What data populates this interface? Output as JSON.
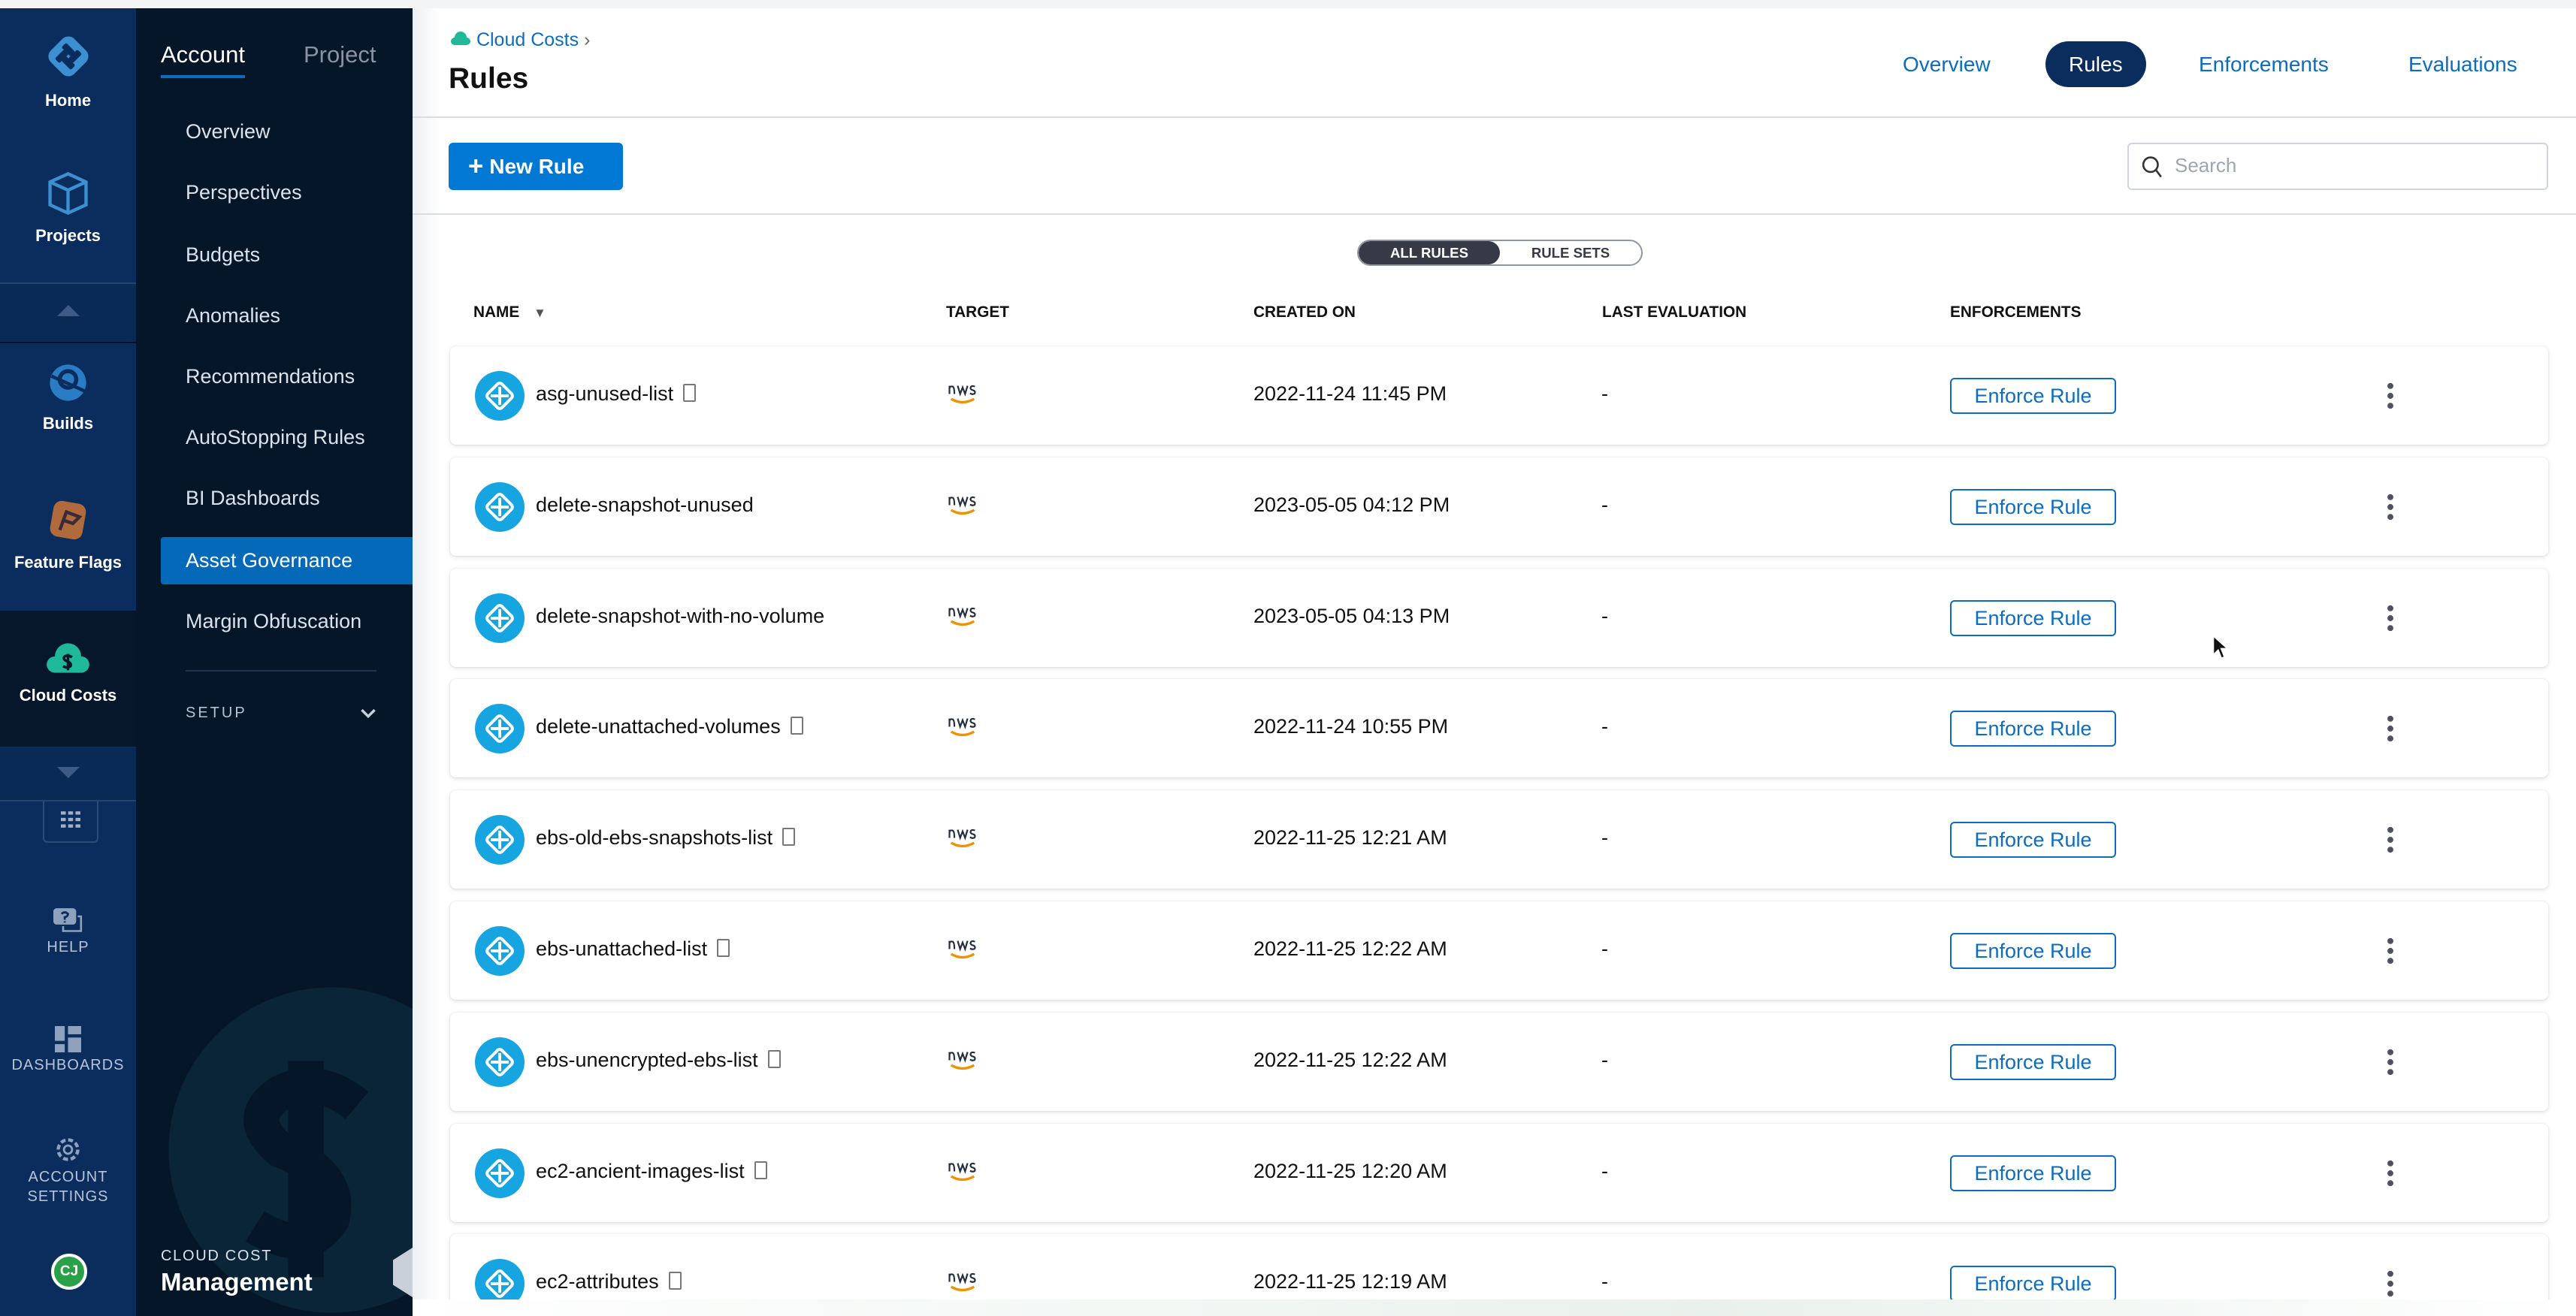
{
  "rail": {
    "items": [
      {
        "label": "Home",
        "icon": "harness-logo-icon"
      },
      {
        "label": "Projects",
        "icon": "cube-icon"
      },
      {
        "label": "Builds",
        "icon": "builds-icon"
      },
      {
        "label": "Feature Flags",
        "icon": "feature-flags-icon"
      },
      {
        "label": "Cloud Costs",
        "icon": "cloud-costs-icon",
        "selected": true
      }
    ],
    "help": "HELP",
    "dashboards": "DASHBOARDS",
    "account_settings_1": "ACCOUNT",
    "account_settings_2": "SETTINGS",
    "avatar": "CJ"
  },
  "nav": {
    "tabs": [
      {
        "label": "Account",
        "active": true
      },
      {
        "label": "Project"
      }
    ],
    "items": [
      "Overview",
      "Perspectives",
      "Budgets",
      "Anomalies",
      "Recommendations",
      "AutoStopping Rules",
      "BI Dashboards",
      "Asset Governance",
      "Margin Obfuscation"
    ],
    "selected": "Asset Governance",
    "setup": "SETUP",
    "module_sub": "CLOUD COST",
    "module_title": "Management"
  },
  "header": {
    "breadcrumb": "Cloud Costs",
    "title": "Rules",
    "tabs": [
      "Overview",
      "Rules",
      "Enforcements",
      "Evaluations"
    ],
    "active_tab": "Rules"
  },
  "toolbar": {
    "new_rule": "New Rule",
    "search_placeholder": "Search"
  },
  "toggle": {
    "all_rules": "ALL RULES",
    "rule_sets": "RULE SETS",
    "active": "ALL RULES"
  },
  "table": {
    "columns": [
      "NAME",
      "TARGET",
      "CREATED ON",
      "LAST EVALUATION",
      "ENFORCEMENTS"
    ],
    "enforce_label": "Enforce Rule",
    "rows": [
      {
        "name": "asg-unused-list",
        "doc": true,
        "target": "aws",
        "created": "2022-11-24 11:45 PM",
        "last": "-"
      },
      {
        "name": "delete-snapshot-unused",
        "doc": false,
        "target": "aws",
        "created": "2023-05-05 04:12 PM",
        "last": "-"
      },
      {
        "name": "delete-snapshot-with-no-volume",
        "doc": false,
        "target": "aws",
        "created": "2023-05-05 04:13 PM",
        "last": "-"
      },
      {
        "name": "delete-unattached-volumes",
        "doc": true,
        "target": "aws",
        "created": "2022-11-24 10:55 PM",
        "last": "-"
      },
      {
        "name": "ebs-old-ebs-snapshots-list",
        "doc": true,
        "target": "aws",
        "created": "2022-11-25 12:21 AM",
        "last": "-"
      },
      {
        "name": "ebs-unattached-list",
        "doc": true,
        "target": "aws",
        "created": "2022-11-25 12:22 AM",
        "last": "-"
      },
      {
        "name": "ebs-unencrypted-ebs-list",
        "doc": true,
        "target": "aws",
        "created": "2022-11-25 12:22 AM",
        "last": "-"
      },
      {
        "name": "ec2-ancient-images-list",
        "doc": true,
        "target": "aws",
        "created": "2022-11-25 12:20 AM",
        "last": "-"
      },
      {
        "name": "ec2-attributes",
        "doc": true,
        "target": "aws",
        "created": "2022-11-25 12:19 AM",
        "last": "-"
      }
    ]
  },
  "colors": {
    "rail": "#0b2d5e",
    "nav": "#061629",
    "accent": "#0278d5",
    "selected_nav": "#0469b8",
    "rule_icon": "#16a5e1"
  }
}
